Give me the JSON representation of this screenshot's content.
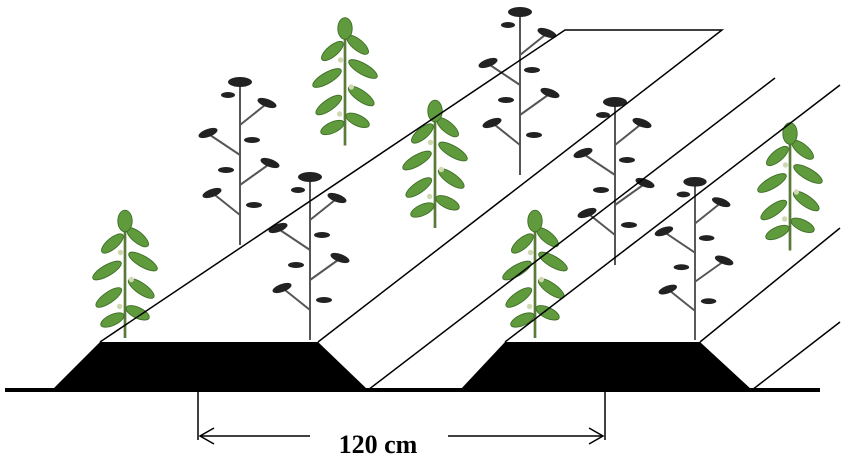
{
  "dimension": {
    "label": "120 cm"
  }
}
